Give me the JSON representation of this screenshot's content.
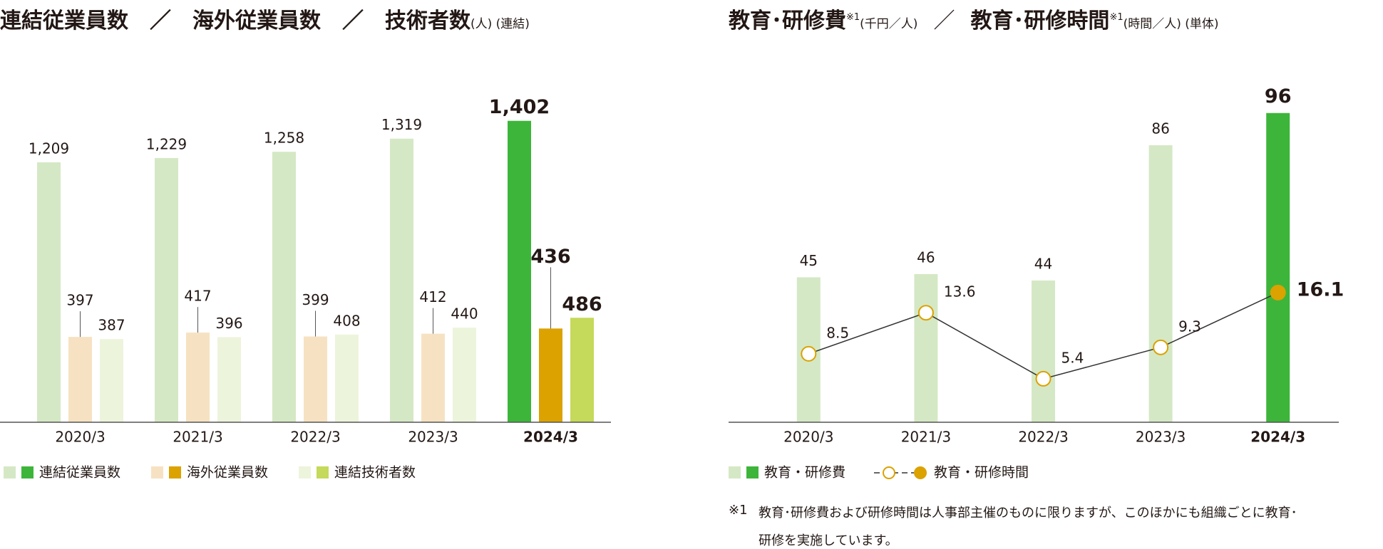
{
  "chart_data": [
    {
      "type": "bar",
      "title": "連結従業員数　／　海外従業員数　／　技術者数",
      "subtitle": "(人) (連結)",
      "categories": [
        "2020/3",
        "2021/3",
        "2022/3",
        "2023/3",
        "2024/3"
      ],
      "series": [
        {
          "name": "連結従業員数",
          "values": [
            1209,
            1229,
            1258,
            1319,
            1402
          ],
          "value_labels": [
            "1,209",
            "1,229",
            "1,258",
            "1,319",
            "1,402"
          ],
          "colors": [
            "#d5e8c5",
            "#d5e8c5",
            "#d5e8c5",
            "#d5e8c5",
            "#3db53a"
          ]
        },
        {
          "name": "海外従業員数",
          "values": [
            397,
            417,
            399,
            412,
            436
          ],
          "colors": [
            "#f6e2c2",
            "#f6e2c2",
            "#f6e2c2",
            "#f6e2c2",
            "#dba200"
          ]
        },
        {
          "name": "連結技術者数",
          "values": [
            387,
            396,
            408,
            440,
            486
          ],
          "colors": [
            "#edf4dc",
            "#edf4dc",
            "#edf4dc",
            "#edf4dc",
            "#c5d95a"
          ]
        }
      ],
      "ylim": [
        0,
        1550
      ]
    },
    {
      "type": "combo",
      "title": "教育･研修費",
      "title_note": "※1",
      "title_unit": "(千円／人)",
      "separator": "／",
      "title2": "教育･研修時間",
      "title2_note": "※1",
      "title2_unit": "(時間／人) (単体)",
      "categories": [
        "2020/3",
        "2021/3",
        "2022/3",
        "2023/3",
        "2024/3"
      ],
      "series": [
        {
          "name": "教育・研修費",
          "type": "bar",
          "values": [
            45,
            46,
            44,
            86,
            96
          ],
          "colors": [
            "#d5e8c5",
            "#d5e8c5",
            "#d5e8c5",
            "#d5e8c5",
            "#3db53a"
          ]
        },
        {
          "name": "教育・研修時間",
          "type": "line",
          "axis": "y2",
          "values": [
            8.5,
            13.6,
            5.4,
            9.3,
            16.1
          ],
          "colors": [
            "#ffffff",
            "#ffffff",
            "#ffffff",
            "#ffffff",
            "#dba200"
          ],
          "line_color": "#333333",
          "marker_edge": "#dba200"
        }
      ],
      "ylim": [
        0,
        105
      ],
      "y2lim": [
        0,
        42
      ]
    }
  ],
  "footnote": {
    "mark": "※1",
    "lines": [
      "教育･研修費および研修時間は人事部主催のものに限りますが、このほかにも組織ごとに教育･",
      "研修を実施しています。"
    ]
  }
}
